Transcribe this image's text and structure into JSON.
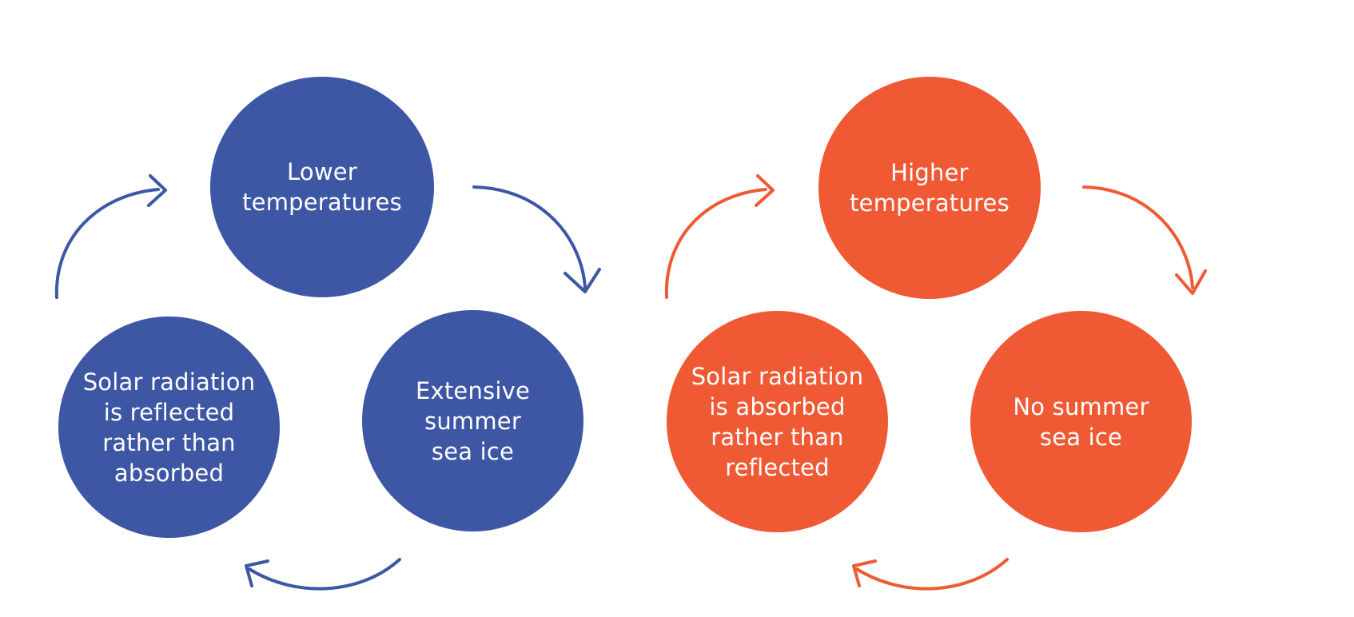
{
  "colors": {
    "cold_cycle": "#3d57a5",
    "warm_cycle": "#ef5a35",
    "background": "#ffffff",
    "text": "#ffffff"
  },
  "cold_cycle": {
    "top": "Lower\ntemperatures",
    "right": "Extensive\nsummer\nsea ice",
    "left": "Solar radiation\nis reflected\nrather than\nabsorbed"
  },
  "warm_cycle": {
    "top": "Higher\ntemperatures",
    "right": "No summer\nsea ice",
    "left": "Solar radiation\nis absorbed\nrather than\nreflected"
  }
}
